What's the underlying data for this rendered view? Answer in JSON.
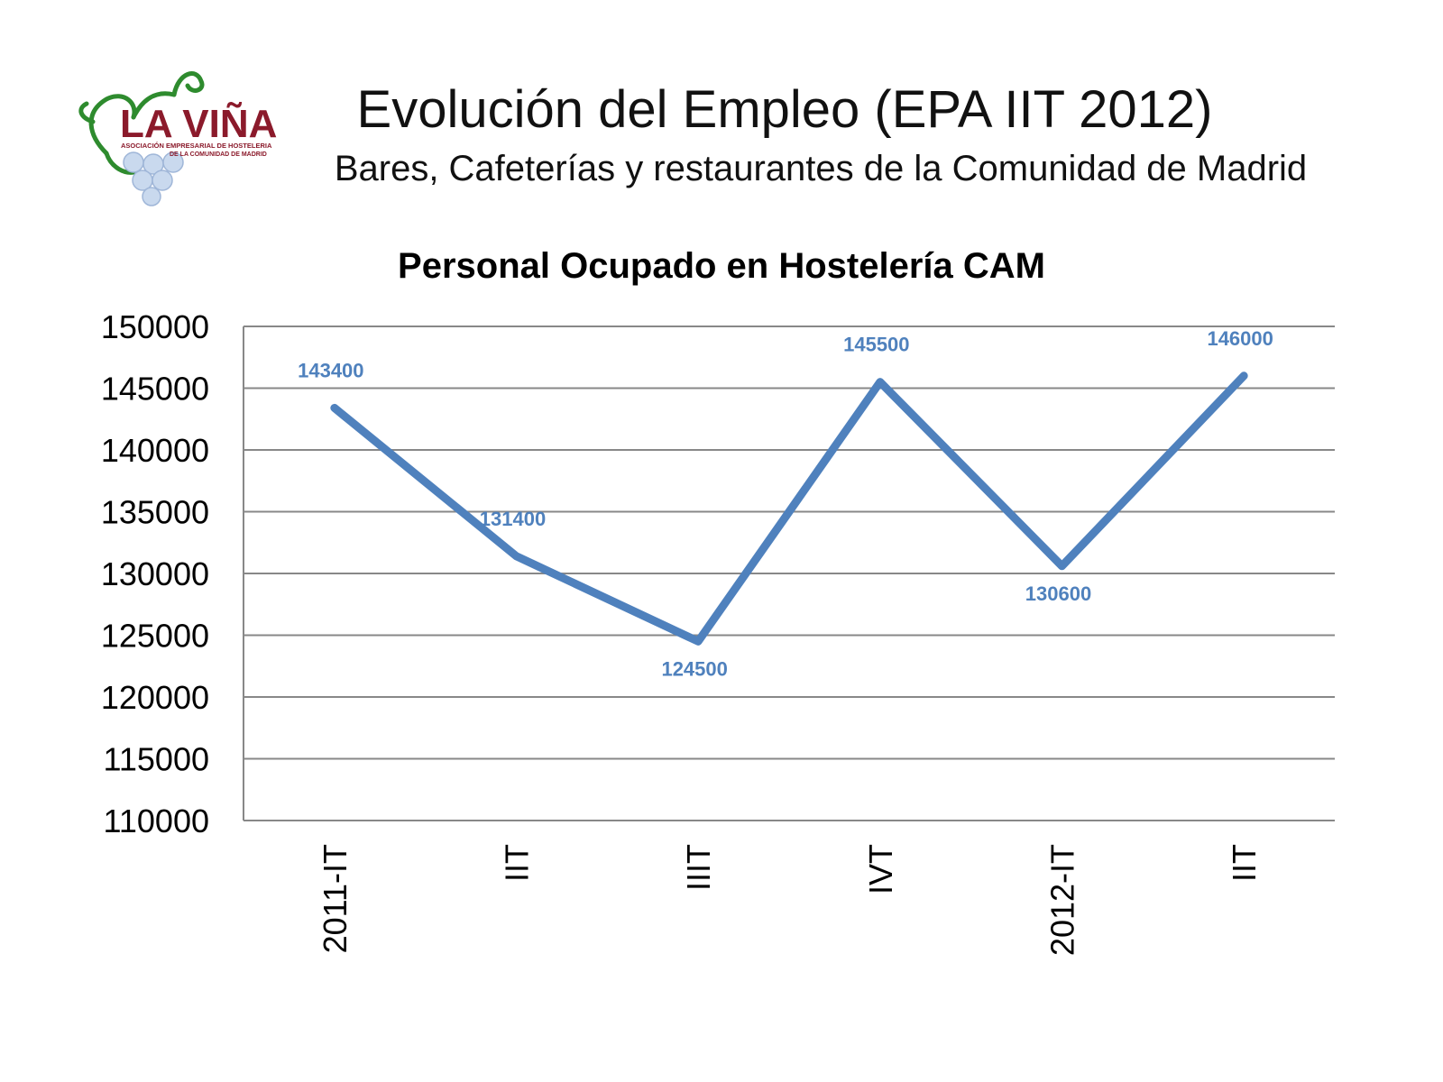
{
  "header": {
    "title": "Evolución del Empleo (EPA IIT 2012)",
    "subtitle": "Bares, Cafeterías y restaurantes de la Comunidad de Madrid"
  },
  "logo": {
    "name": "LA VIÑA",
    "tagline_1": "ASOCIACIÓN EMPRESARIAL DE HOSTELERIA",
    "tagline_2": "DE LA COMUNIDAD DE MADRID",
    "colors": {
      "text": "#8b1a2b",
      "vine": "#2e8b2e",
      "grapes": "#c9d9ee"
    }
  },
  "chart_data": {
    "type": "line",
    "title": "Personal Ocupado en Hostelería CAM",
    "xlabel": "",
    "ylabel": "",
    "categories": [
      "2011-IT",
      "IIT",
      "IIIT",
      "IVT",
      "2012-IT",
      "IIT"
    ],
    "series": [
      {
        "values": [
          143400,
          131400,
          124500,
          145500,
          130600,
          146000
        ]
      }
    ],
    "data_labels": [
      "143400",
      "131400",
      "124500",
      "145500",
      "130600",
      "146000"
    ],
    "ylim": [
      110000,
      150000
    ],
    "yticks": [
      110000,
      115000,
      120000,
      125000,
      130000,
      135000,
      140000,
      145000,
      150000
    ],
    "grid": true,
    "line_color": "#4f81bd",
    "label_color": "#4f81bd"
  }
}
